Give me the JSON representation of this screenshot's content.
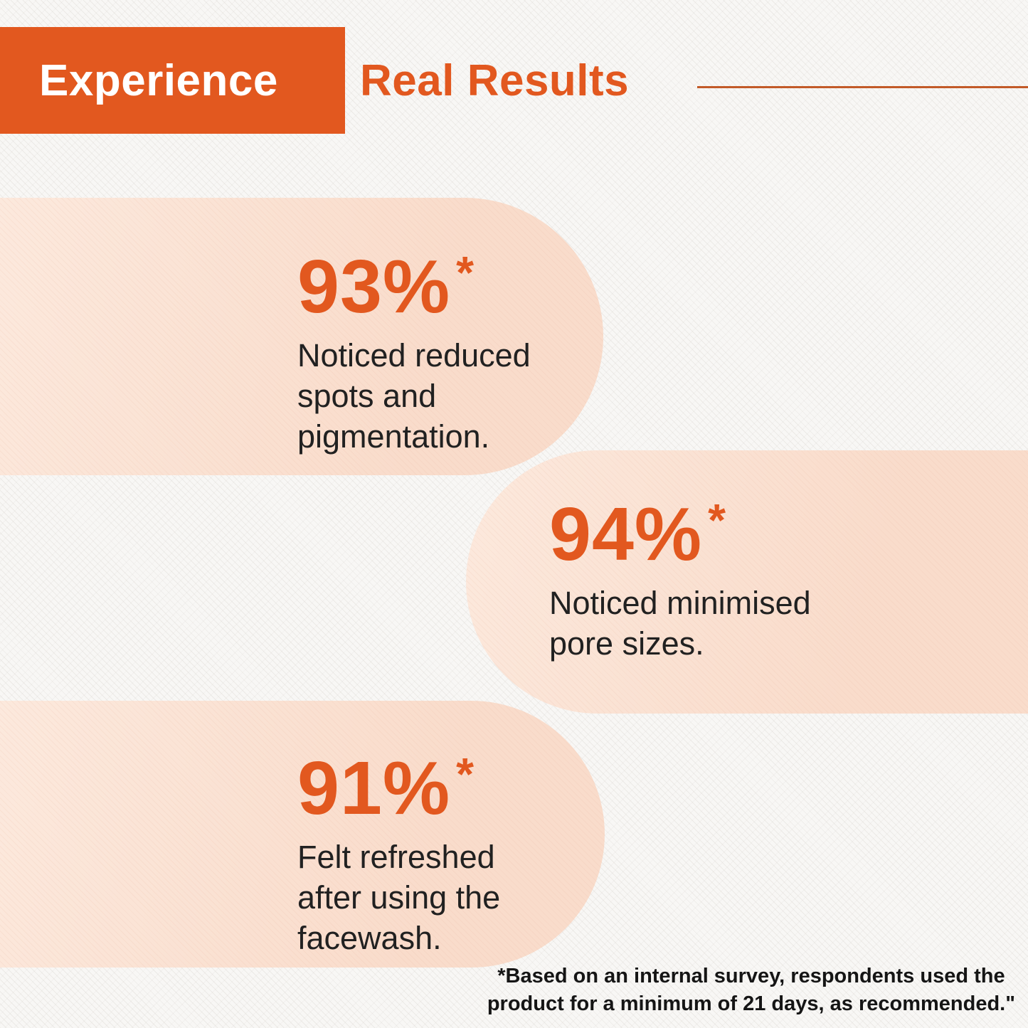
{
  "header": {
    "highlight": "Experience",
    "rest": "Real Results"
  },
  "stats": [
    {
      "value": "93%",
      "marker": "*",
      "lines": [
        "Noticed reduced",
        "spots and",
        "pigmentation."
      ]
    },
    {
      "value": "94%",
      "marker": "*",
      "lines": [
        "Noticed minimised",
        "pore sizes."
      ]
    },
    {
      "value": "91%",
      "marker": "*",
      "lines": [
        "Felt refreshed",
        "after using the",
        "facewash."
      ]
    }
  ],
  "footnote": {
    "lines": [
      "*Based on an internal survey, respondents used the",
      "product for a minimum of 21 days, as recommended.\""
    ]
  },
  "colors": {
    "accent_orange": "#E2581F",
    "rule_orange": "#C25A28",
    "blob_peach": "#F9DDCC",
    "text_dark": "#212121",
    "background": "#F8F7F5"
  }
}
